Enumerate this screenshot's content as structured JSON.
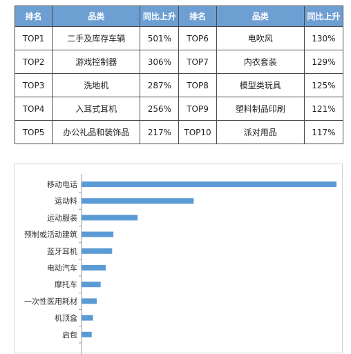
{
  "table": {
    "headers": [
      "排名",
      "品类",
      "同比上升",
      "排名",
      "品类",
      "同比上升"
    ],
    "rows": [
      [
        "TOP1",
        "二手及库存车辆",
        "501%",
        "TOP6",
        "电吹风",
        "130%"
      ],
      [
        "TOP2",
        "游戏控制器",
        "306%",
        "TOP7",
        "内衣套装",
        "129%"
      ],
      [
        "TOP3",
        "洗地机",
        "287%",
        "TOP8",
        "模型类玩具",
        "125%"
      ],
      [
        "TOP4",
        "入耳式耳机",
        "256%",
        "TOP9",
        "塑料制品印刷",
        "121%"
      ],
      [
        "TOP5",
        "办公礼品和装饰品",
        "217%",
        "TOP10",
        "派对用品",
        "117%"
      ]
    ]
  },
  "chart_data": {
    "type": "bar",
    "orientation": "horizontal",
    "categories": [
      "移动电话",
      "运动料",
      "运动服装",
      "预制或活动建筑",
      "蓝牙耳机",
      "电动汽车",
      "摩托车",
      "一次性医用耗材",
      "机顶盒",
      "启包"
    ],
    "values": [
      100,
      44,
      22,
      12.5,
      12,
      9.5,
      7.5,
      6,
      4.5,
      4
    ],
    "title": "",
    "xlabel": "",
    "ylabel": "",
    "xlim": [
      0,
      100
    ],
    "grid": false,
    "bar_color": "#5b9bd5"
  }
}
